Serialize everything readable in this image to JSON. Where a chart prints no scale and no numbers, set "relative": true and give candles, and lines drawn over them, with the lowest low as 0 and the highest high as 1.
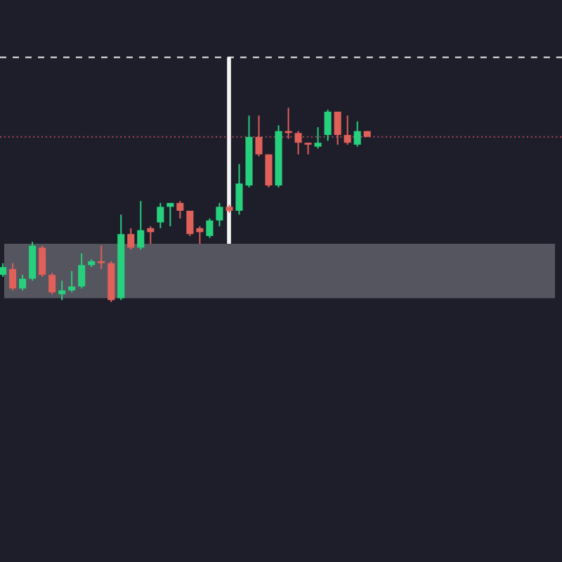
{
  "chart_data": {
    "type": "candlestick",
    "relative": true,
    "categories": [
      null,
      null,
      null,
      null,
      null,
      null,
      null,
      null,
      null,
      null,
      null,
      null,
      null,
      null,
      null,
      null,
      null,
      null,
      null,
      null,
      null,
      null,
      null,
      null,
      null,
      null,
      null,
      null,
      null,
      null,
      null,
      null,
      null,
      null,
      null,
      null,
      null,
      null
    ],
    "ohlc": [
      [
        0.14,
        0.2,
        0.13,
        0.18
      ],
      [
        0.17,
        0.2,
        0.06,
        0.07
      ],
      [
        0.07,
        0.14,
        0.06,
        0.12
      ],
      [
        0.12,
        0.31,
        0.11,
        0.29
      ],
      [
        0.28,
        0.29,
        0.13,
        0.14
      ],
      [
        0.14,
        0.15,
        0.04,
        0.05
      ],
      [
        0.04,
        0.11,
        0.01,
        0.06
      ],
      [
        0.06,
        0.16,
        0.05,
        0.08
      ],
      [
        0.08,
        0.25,
        0.07,
        0.19
      ],
      [
        0.19,
        0.22,
        0.18,
        0.21
      ],
      [
        0.21,
        0.29,
        0.17,
        0.2
      ],
      [
        0.2,
        0.21,
        0.0,
        0.01
      ],
      [
        0.02,
        0.45,
        0.01,
        0.35
      ],
      [
        0.35,
        0.38,
        0.27,
        0.28
      ],
      [
        0.28,
        0.52,
        0.27,
        0.37
      ],
      [
        0.38,
        0.39,
        0.3,
        0.36
      ],
      [
        0.41,
        0.51,
        0.38,
        0.49
      ],
      [
        0.49,
        0.51,
        0.39,
        0.51
      ],
      [
        0.51,
        0.52,
        0.43,
        0.47
      ],
      [
        0.47,
        0.47,
        0.34,
        0.35
      ],
      [
        0.38,
        0.39,
        0.3,
        0.36
      ],
      [
        0.34,
        0.43,
        0.33,
        0.42
      ],
      [
        0.42,
        0.51,
        0.39,
        0.49
      ],
      [
        0.49,
        0.5,
        0.46,
        0.47
      ],
      [
        0.47,
        0.71,
        0.45,
        0.61
      ],
      [
        0.6,
        0.96,
        0.59,
        0.85
      ],
      [
        0.85,
        0.96,
        0.75,
        0.76
      ],
      [
        0.76,
        0.76,
        0.59,
        0.6
      ],
      [
        0.6,
        0.91,
        0.59,
        0.88
      ],
      [
        0.88,
        1.0,
        0.84,
        0.87
      ],
      [
        0.87,
        0.88,
        0.76,
        0.82
      ],
      [
        0.82,
        0.82,
        0.76,
        0.81
      ],
      [
        0.8,
        0.9,
        0.79,
        0.82
      ],
      [
        0.86,
        0.99,
        0.83,
        0.98
      ],
      [
        0.98,
        0.98,
        0.81,
        0.86
      ],
      [
        0.86,
        0.96,
        0.81,
        0.82
      ],
      [
        0.81,
        0.93,
        0.8,
        0.88
      ],
      [
        0.88,
        0.88,
        0.85,
        0.85
      ]
    ],
    "colors": [
      "#26d07c",
      "#e0605a",
      "#26d07c",
      "#26d07c",
      "#e0605a",
      "#e0605a",
      "#26d07c",
      "#26d07c",
      "#26d07c",
      "#26d07c",
      "#e0605a",
      "#e0605a",
      "#26d07c",
      "#e0605a",
      "#26d07c",
      "#e0605a",
      "#26d07c",
      "#26d07c",
      "#e0605a",
      "#e0605a",
      "#e0605a",
      "#26d07c",
      "#26d07c",
      "#e0605a",
      "#26d07c",
      "#26d07c",
      "#e0605a",
      "#e0605a",
      "#26d07c",
      "#e0605a",
      "#e0605a",
      "#e0605a",
      "#26d07c",
      "#26d07c",
      "#e0605a",
      "#e0605a",
      "#26d07c",
      "#e0605a"
    ],
    "ref_lines": [
      {
        "axis": "y",
        "value": 1.26,
        "color": "#d8d8d8",
        "line_style": "dashed"
      },
      {
        "axis": "y",
        "value": 0.85,
        "color": "#9c4458",
        "line_style": "dotted"
      }
    ],
    "bands": [
      {
        "axis": "y",
        "from": 0.02,
        "to": 0.3,
        "color": "#55555f"
      }
    ]
  }
}
